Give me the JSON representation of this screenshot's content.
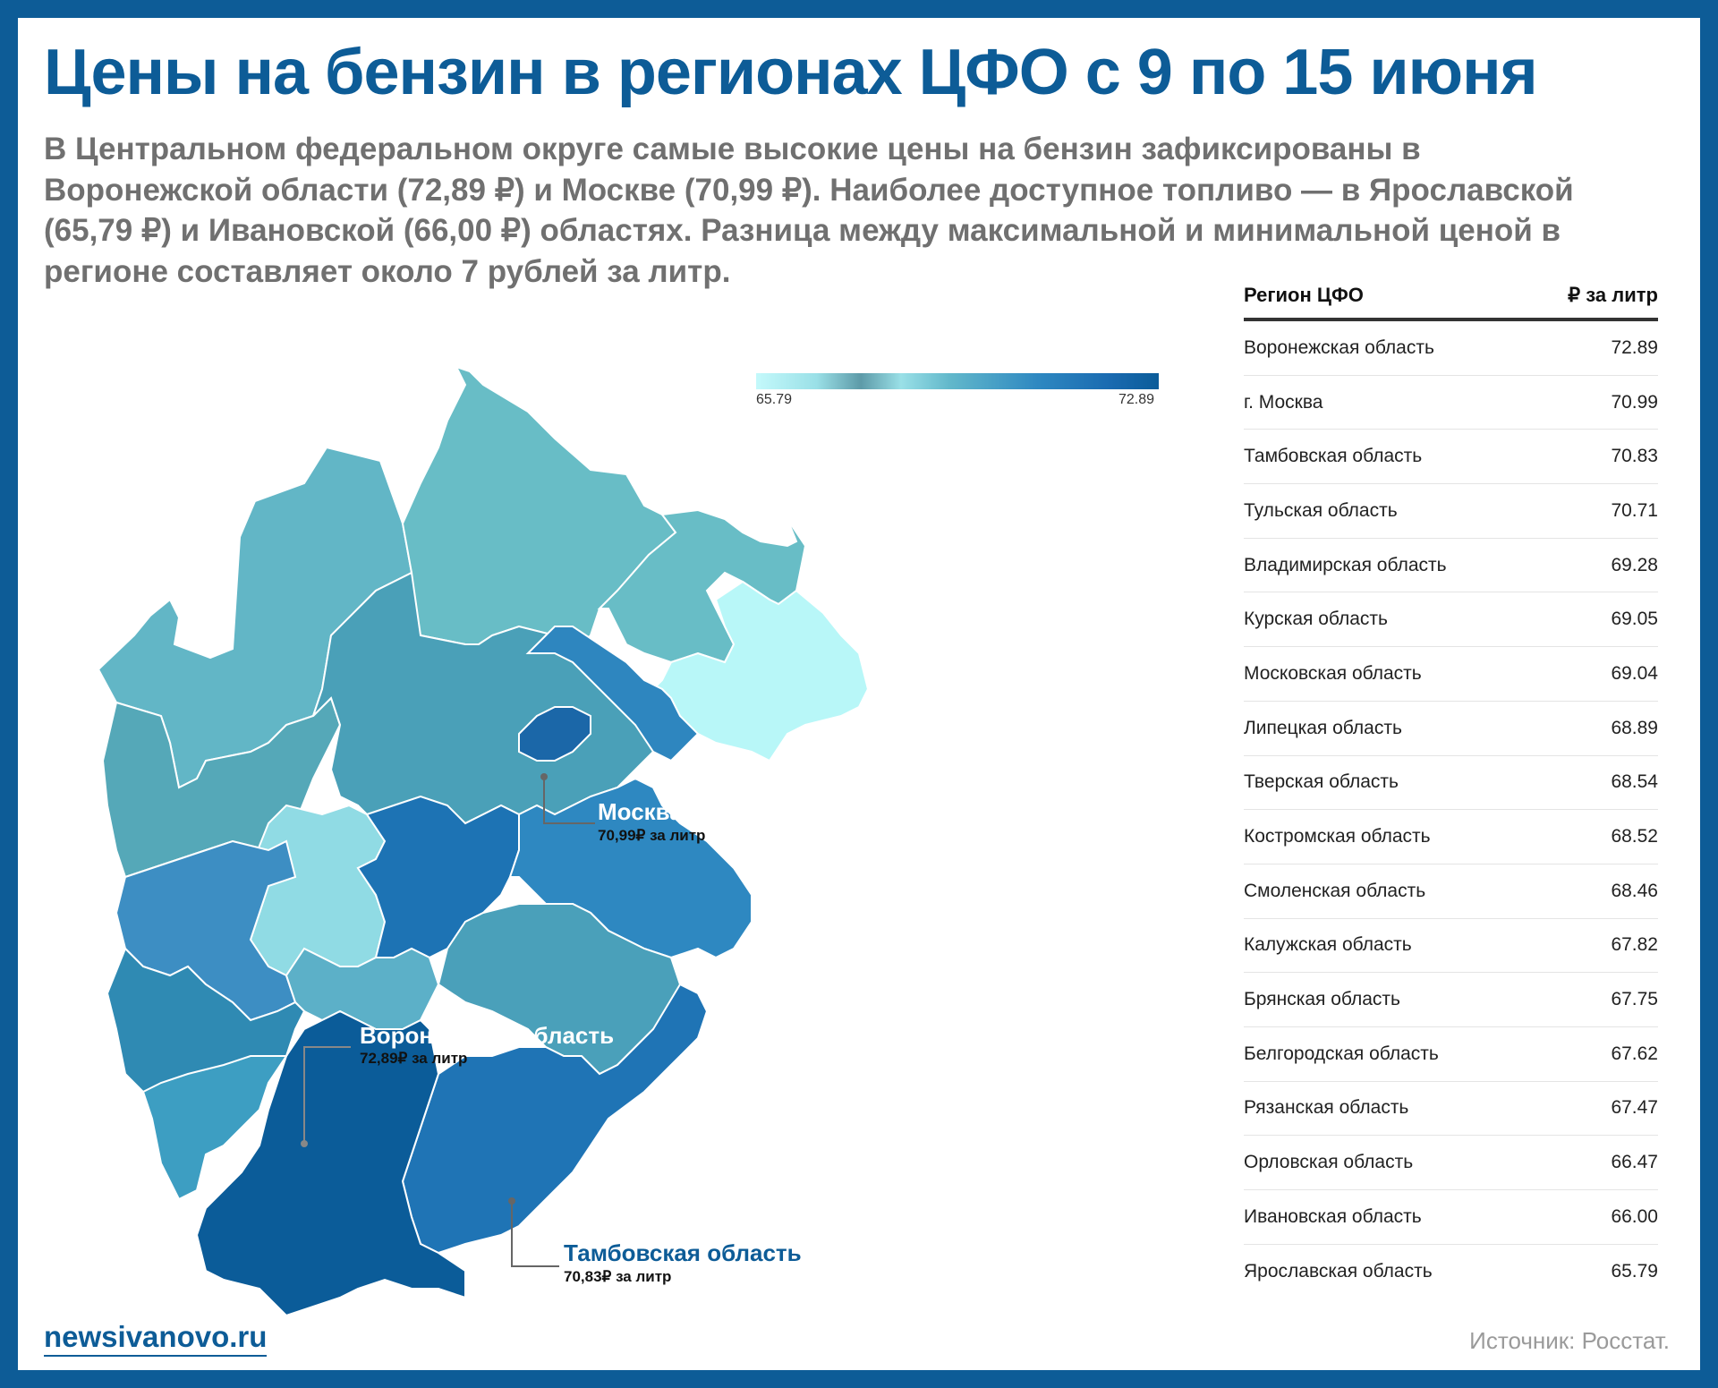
{
  "title": "Цены на бензин в регионах ЦФО с 9 по 15 июня",
  "subtitle": "В Центральном федеральном округе самые высокие цены на бензин зафиксированы в Воронежской области (72,89 ₽) и Москве (70,99 ₽). Наиболее доступное топливо — в Ярославской (65,79 ₽) и Ивановской (66,00 ₽) областях. Разница между максимальной и минимальной ценой в регионе составляет около 7 рублей за литр.",
  "legend": {
    "min": "65.79",
    "max": "72.89"
  },
  "callouts": {
    "moscow": {
      "name": "Москва",
      "value": "70,99₽ за литр"
    },
    "voronezh": {
      "name": "Воронежская область",
      "value": "72,89₽ за литр"
    },
    "tambov": {
      "name": "Тамбовская область",
      "value": "70,83₽ за литр"
    }
  },
  "table": {
    "col_region": "Регион ЦФО",
    "col_price": "₽ за литр",
    "rows": [
      {
        "region": "Воронежская область",
        "price": "72.89"
      },
      {
        "region": "г. Москва",
        "price": "70.99"
      },
      {
        "region": "Тамбовская область",
        "price": "70.83"
      },
      {
        "region": "Тульская область",
        "price": "70.71"
      },
      {
        "region": "Владимирская область",
        "price": "69.28"
      },
      {
        "region": "Курская область",
        "price": "69.05"
      },
      {
        "region": "Московская область",
        "price": "69.04"
      },
      {
        "region": "Липецкая область",
        "price": "68.89"
      },
      {
        "region": "Тверская область",
        "price": "68.54"
      },
      {
        "region": "Костромская область",
        "price": "68.52"
      },
      {
        "region": "Смоленская область",
        "price": "68.46"
      },
      {
        "region": "Калужская область",
        "price": "67.82"
      },
      {
        "region": "Брянская область",
        "price": "67.75"
      },
      {
        "region": "Белгородская область",
        "price": "67.62"
      },
      {
        "region": "Рязанская область",
        "price": "67.47"
      },
      {
        "region": "Орловская область",
        "price": "66.47"
      },
      {
        "region": "Ивановская область",
        "price": "66.00"
      },
      {
        "region": "Ярославская область",
        "price": "65.79"
      }
    ]
  },
  "footer": {
    "site": "newsivanovo.ru",
    "source": "Источник: Росстат."
  },
  "colors": {
    "brand": "#0d5c97",
    "scale_low": "#c4f9fb",
    "scale_high": "#0b5c99"
  }
}
